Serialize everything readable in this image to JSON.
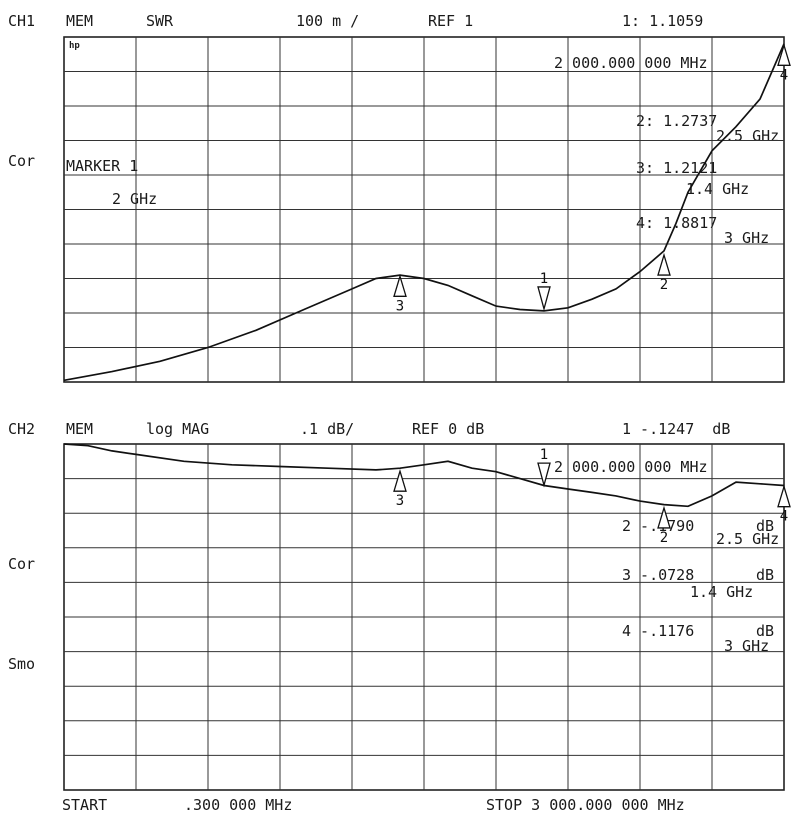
{
  "chart_data": [
    {
      "type": "line",
      "channel": "CH1",
      "header": {
        "ch": "CH1",
        "mem": "MEM",
        "format": "SWR",
        "scale": "100 m /",
        "ref": "REF 1",
        "active_marker": "1: 1.1059"
      },
      "side_labels": {
        "cor": "Cor"
      },
      "hp_logo": "hp",
      "marker_freq": "2 000.000 000 MHz",
      "marker_box": {
        "line1": "MARKER 1",
        "line2": "2 GHz"
      },
      "marker_list": [
        {
          "label": "2: 1.2737",
          "freq": "2.5 GHz"
        },
        {
          "label": "3: 1.2121",
          "freq": "1.4 GHz"
        },
        {
          "label": "4: 1.8817",
          "freq": "3 GHz"
        }
      ],
      "ylim": [
        0.9,
        1.9
      ],
      "x_ghz": [
        0.0003,
        0.2,
        0.4,
        0.6,
        0.8,
        1.0,
        1.2,
        1.3,
        1.4,
        1.5,
        1.6,
        1.7,
        1.8,
        1.9,
        2.0,
        2.1,
        2.2,
        2.3,
        2.4,
        2.5,
        2.55,
        2.6,
        2.7,
        2.8,
        2.9,
        3.0
      ],
      "y": [
        0.905,
        0.93,
        0.96,
        1.0,
        1.05,
        1.11,
        1.17,
        1.2,
        1.21,
        1.2,
        1.18,
        1.15,
        1.12,
        1.11,
        1.106,
        1.115,
        1.14,
        1.17,
        1.22,
        1.28,
        1.36,
        1.45,
        1.57,
        1.64,
        1.72,
        1.88
      ],
      "markers": [
        {
          "id": "1",
          "x": 2.0,
          "y": 1.106
        },
        {
          "id": "2",
          "x": 2.5,
          "y": 1.2737
        },
        {
          "id": "3",
          "x": 1.4,
          "y": 1.2121
        },
        {
          "id": "4",
          "x": 3.0,
          "y": 1.8817
        }
      ]
    },
    {
      "type": "line",
      "channel": "CH2",
      "header": {
        "ch": "CH2",
        "mem": "MEM",
        "format": "log MAG",
        "scale": ".1 dB/",
        "ref": "REF 0 dB",
        "active_marker": "1 -.1247  dB"
      },
      "side_labels": {
        "cor": "Cor",
        "smo": "Smo"
      },
      "marker_freq": "2 000.000 000 MHz",
      "marker_list": [
        {
          "label": "2 -.1790",
          "unit": "dB",
          "freq": "2.5 GHz"
        },
        {
          "label": "3 -.0728",
          "unit": "dB",
          "freq": "1.4 GHz"
        },
        {
          "label": "4 -.1176",
          "unit": "dB",
          "freq": "3 GHz"
        }
      ],
      "ylim": [
        -1.0,
        0.0
      ],
      "x_ghz": [
        0.0003,
        0.1,
        0.2,
        0.3,
        0.5,
        0.7,
        0.9,
        1.1,
        1.3,
        1.4,
        1.5,
        1.6,
        1.7,
        1.8,
        1.9,
        2.0,
        2.1,
        2.2,
        2.3,
        2.4,
        2.5,
        2.6,
        2.7,
        2.8,
        2.9,
        3.0
      ],
      "y": [
        0.0,
        -0.005,
        -0.02,
        -0.03,
        -0.05,
        -0.06,
        -0.065,
        -0.07,
        -0.075,
        -0.07,
        -0.06,
        -0.05,
        -0.07,
        -0.08,
        -0.1,
        -0.12,
        -0.13,
        -0.14,
        -0.15,
        -0.165,
        -0.175,
        -0.18,
        -0.15,
        -0.11,
        -0.115,
        -0.12
      ],
      "markers": [
        {
          "id": "1",
          "x": 2.0,
          "y": -0.1247
        },
        {
          "id": "2",
          "x": 2.5,
          "y": -0.179
        },
        {
          "id": "3",
          "x": 1.4,
          "y": -0.0728
        },
        {
          "id": "4",
          "x": 3.0,
          "y": -0.1176
        }
      ]
    }
  ],
  "footer": {
    "start": "START",
    "start_val": ".300 000 MHz",
    "stop": "STOP 3 000.000 000 MHz"
  }
}
